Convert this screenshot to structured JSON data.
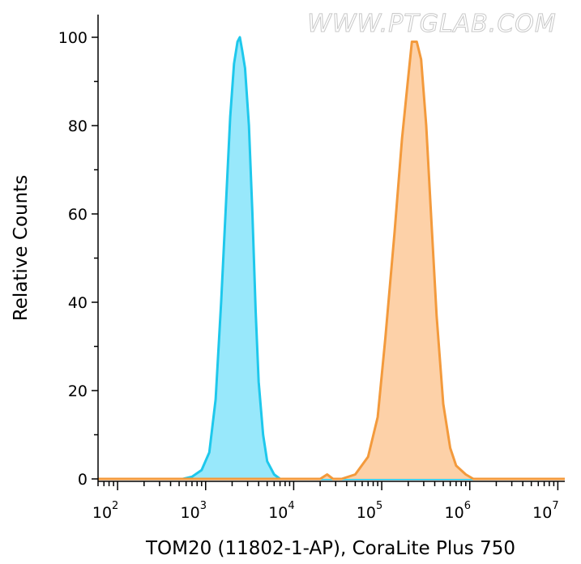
{
  "watermark": "WWW.PTGLAB.COM",
  "chart_data": {
    "type": "area",
    "title": "",
    "xlabel": "TOM20 (11802-1-AP), CoraLite Plus 750",
    "ylabel": "Relative Counts",
    "x_scale": "log",
    "xlim": [
      60,
      12000000
    ],
    "ylim": [
      0,
      105
    ],
    "x_ticks": [
      {
        "value": 100,
        "base": "10",
        "exp": "2"
      },
      {
        "value": 1000,
        "base": "10",
        "exp": "3"
      },
      {
        "value": 10000,
        "base": "10",
        "exp": "4"
      },
      {
        "value": 100000,
        "base": "10",
        "exp": "5"
      },
      {
        "value": 1000000,
        "base": "10",
        "exp": "6"
      },
      {
        "value": 10000000,
        "base": "10",
        "exp": "7"
      }
    ],
    "y_ticks": [
      {
        "value": 0,
        "label": "0"
      },
      {
        "value": 20,
        "label": "20"
      },
      {
        "value": 40,
        "label": "40"
      },
      {
        "value": 60,
        "label": "60"
      },
      {
        "value": 80,
        "label": "80"
      },
      {
        "value": 100,
        "label": "100"
      }
    ],
    "grid": false,
    "series": [
      {
        "color": "#1ec8ec",
        "fill": "#98e8fb",
        "x": [
          60,
          550,
          700,
          900,
          1100,
          1300,
          1500,
          1700,
          1900,
          2100,
          2300,
          2450,
          2600,
          2800,
          3100,
          3400,
          3700,
          4000,
          4500,
          5000,
          6000,
          7000,
          9000,
          12000000
        ],
        "y": [
          0,
          0,
          0.5,
          2,
          6,
          18,
          40,
          62,
          82,
          94,
          99,
          100,
          97,
          93,
          80,
          60,
          38,
          22,
          10,
          4,
          1,
          0,
          0,
          0
        ]
      },
      {
        "color": "#f39a3c",
        "fill": "#fdd1a8",
        "x": [
          60,
          20000,
          24000,
          28000,
          35000,
          50000,
          70000,
          90000,
          110000,
          140000,
          170000,
          200000,
          220000,
          250000,
          280000,
          320000,
          370000,
          420000,
          500000,
          600000,
          700000,
          900000,
          1100000,
          12000000
        ],
        "y": [
          0,
          0,
          1,
          0,
          0,
          1,
          5,
          14,
          32,
          56,
          77,
          91,
          99,
          99,
          95,
          80,
          57,
          37,
          17,
          7,
          3,
          1,
          0,
          0
        ]
      }
    ]
  }
}
